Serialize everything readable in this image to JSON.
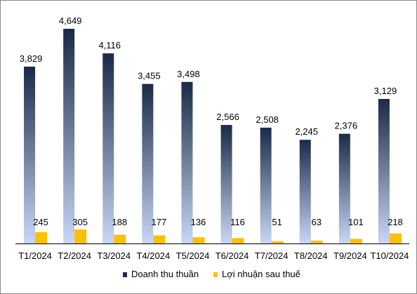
{
  "chart_data": {
    "type": "bar",
    "categories": [
      "T1/2024",
      "T2/2024",
      "T3/2024",
      "T4/2024",
      "T5/2024",
      "T6/2024",
      "T7/2024",
      "T8/2024",
      "T9/2024",
      "T10/2024"
    ],
    "series": [
      {
        "name": "Doanh thu thuần",
        "values": [
          3829,
          4649,
          4116,
          3455,
          3498,
          2566,
          2508,
          2245,
          2376,
          3129
        ],
        "value_labels": [
          "3,829",
          "4,649",
          "4,116",
          "3,455",
          "3,498",
          "2,566",
          "2,508",
          "2,245",
          "2,376",
          "3,129"
        ],
        "color_top": "#1b2a47",
        "color_bottom": "#c9d6f5"
      },
      {
        "name": "Lợi nhuận sau thuế",
        "values": [
          245,
          305,
          188,
          177,
          136,
          116,
          51,
          63,
          101,
          218
        ],
        "value_labels": [
          "245",
          "305",
          "188",
          "177",
          "136",
          "116",
          "51",
          "63",
          "101",
          "218"
        ],
        "color": "#ffc000"
      }
    ],
    "title": "",
    "xlabel": "",
    "ylabel": "",
    "ylim": [
      0,
      4649
    ],
    "grid": false,
    "legend": "bottom"
  }
}
